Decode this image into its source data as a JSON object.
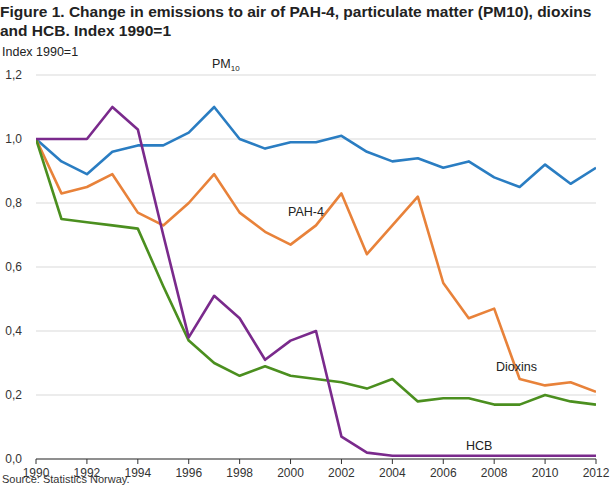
{
  "chart_data": {
    "type": "line",
    "title": "Figure 1. Change in emissions to air of PAH-4, particulate matter (PM10), dioxins and HCB. Index 1990=1",
    "y_label": "Index 1990=1",
    "source": "Source: Statistics Norway.",
    "x": [
      1990,
      1991,
      1992,
      1993,
      1994,
      1995,
      1996,
      1997,
      1998,
      1999,
      2000,
      2001,
      2002,
      2003,
      2004,
      2005,
      2006,
      2007,
      2008,
      2009,
      2010,
      2011,
      2012
    ],
    "xlim": [
      1990,
      2012
    ],
    "xticks": [
      1990,
      1992,
      1994,
      1996,
      1998,
      2000,
      2002,
      2004,
      2006,
      2008,
      2010,
      2012
    ],
    "ylim": [
      0,
      1.2
    ],
    "yticks": [
      {
        "value": 0,
        "label": "0,0"
      },
      {
        "value": 0.2,
        "label": "0,2"
      },
      {
        "value": 0.4,
        "label": "0,4"
      },
      {
        "value": 0.6,
        "label": "0,6"
      },
      {
        "value": 0.8,
        "label": "0,8"
      },
      {
        "value": 1.0,
        "label": "1,0"
      },
      {
        "value": 1.2,
        "label": "1,2"
      }
    ],
    "grid": true,
    "series": [
      {
        "name": "PM10",
        "color": "#2a7dc2",
        "values": [
          1.0,
          0.93,
          0.89,
          0.96,
          0.98,
          0.98,
          1.02,
          1.1,
          1.0,
          0.97,
          0.99,
          0.99,
          1.01,
          0.96,
          0.93,
          0.94,
          0.91,
          0.93,
          0.88,
          0.85,
          0.92,
          0.86,
          0.91
        ]
      },
      {
        "name": "PAH-4",
        "color": "#e8823a",
        "values": [
          1.0,
          0.83,
          0.85,
          0.89,
          0.77,
          0.73,
          0.8,
          0.89,
          0.77,
          0.71,
          0.67,
          0.73,
          0.83,
          0.64,
          0.73,
          0.82,
          0.55,
          0.44,
          0.47,
          0.25,
          0.23,
          0.24,
          0.21
        ]
      },
      {
        "name": "Dioxins",
        "color": "#4b8f1f",
        "values": [
          1.0,
          0.75,
          0.74,
          0.73,
          0.72,
          0.54,
          0.37,
          0.3,
          0.26,
          0.29,
          0.26,
          0.25,
          0.24,
          0.22,
          0.25,
          0.18,
          0.19,
          0.19,
          0.17,
          0.17,
          0.2,
          0.18,
          0.17
        ]
      },
      {
        "name": "HCB",
        "color": "#7a2a8c",
        "values": [
          1.0,
          1.0,
          1.0,
          1.1,
          1.03,
          0.7,
          0.38,
          0.51,
          0.44,
          0.31,
          0.37,
          0.4,
          0.07,
          0.02,
          0.01,
          0.01,
          0.01,
          0.01,
          0.01,
          0.01,
          0.01,
          0.01,
          0.01
        ]
      }
    ]
  }
}
